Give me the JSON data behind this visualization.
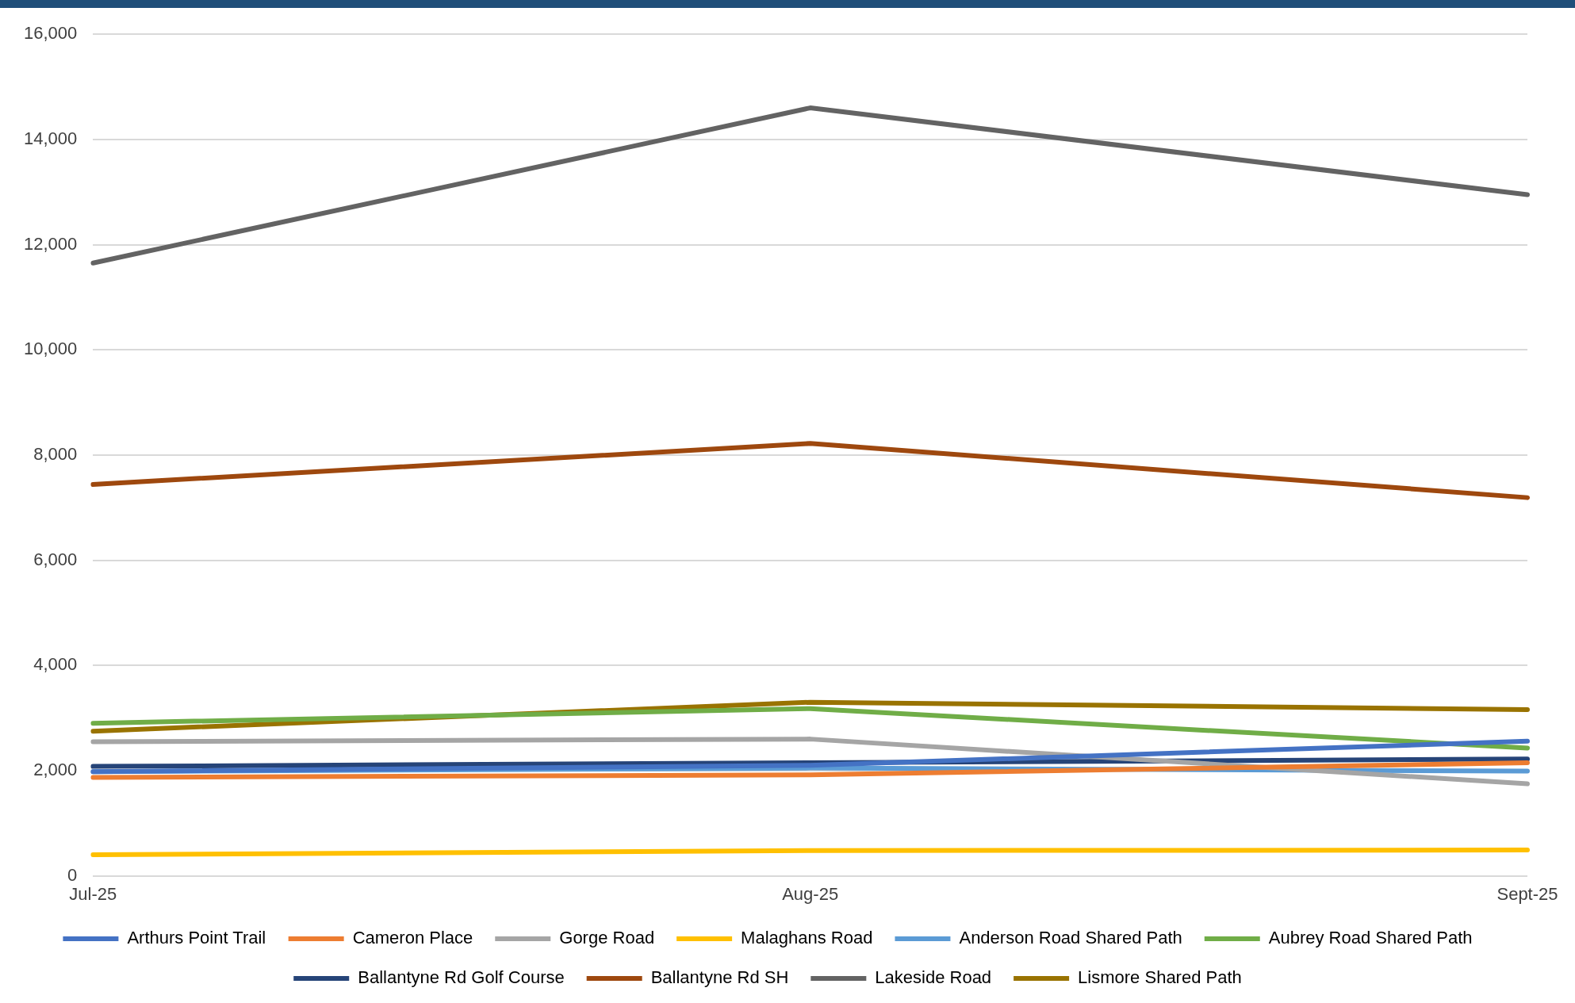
{
  "chart_data": {
    "type": "line",
    "categories": [
      "Jul-25",
      "Aug-25",
      "Sept-25"
    ],
    "series": [
      {
        "name": "Arthurs Point Trail",
        "color": "#4472c4",
        "values": [
          1980,
          2100,
          2560
        ]
      },
      {
        "name": "Cameron Place",
        "color": "#ed7d31",
        "values": [
          1870,
          1920,
          2150
        ]
      },
      {
        "name": "Gorge Road",
        "color": "#a5a5a5",
        "values": [
          2550,
          2600,
          1750
        ]
      },
      {
        "name": "Malaghans Road",
        "color": "#ffc000",
        "values": [
          400,
          480,
          490
        ]
      },
      {
        "name": "Anderson Road Shared Path",
        "color": "#5b9bd5",
        "values": [
          1980,
          2050,
          1990
        ]
      },
      {
        "name": "Aubrey Road Shared Path",
        "color": "#70ad47",
        "values": [
          2900,
          3180,
          2430
        ]
      },
      {
        "name": "Ballantyne Rd Golf Course",
        "color": "#264478",
        "values": [
          2080,
          2150,
          2220
        ]
      },
      {
        "name": "Ballantyne Rd SH",
        "color": "#9e480e",
        "values": [
          7440,
          8220,
          7190
        ]
      },
      {
        "name": "Lakeside Road",
        "color": "#636363",
        "values": [
          11650,
          14600,
          12950
        ]
      },
      {
        "name": "Lismore Shared Path",
        "color": "#997300",
        "values": [
          2750,
          3300,
          3160
        ]
      }
    ],
    "ylim": [
      0,
      16000
    ],
    "yticks": [
      {
        "value": 0,
        "label": "0"
      },
      {
        "value": 2000,
        "label": "2,000"
      },
      {
        "value": 4000,
        "label": "4,000"
      },
      {
        "value": 6000,
        "label": "6,000"
      },
      {
        "value": 8000,
        "label": "8,000"
      },
      {
        "value": 10000,
        "label": "10,000"
      },
      {
        "value": 12000,
        "label": "12,000"
      },
      {
        "value": 14000,
        "label": "14,000"
      },
      {
        "value": 16000,
        "label": "16,000"
      }
    ],
    "grid": "y",
    "legend": "bottom",
    "marker": "none",
    "line_style": "solid"
  }
}
